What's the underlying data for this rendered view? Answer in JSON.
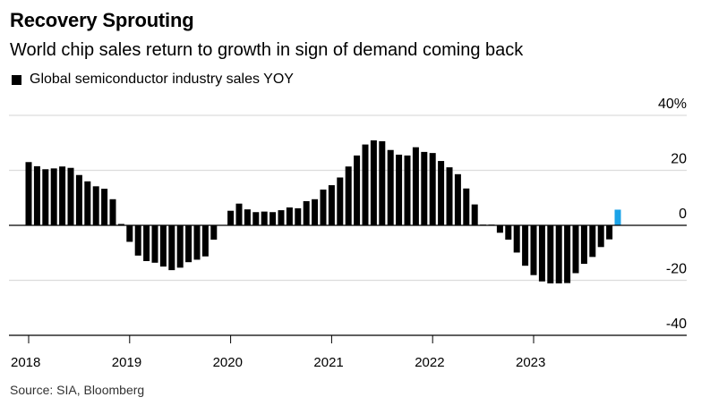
{
  "chart_data": {
    "type": "bar",
    "title": "Recovery Sprouting",
    "subtitle": "World chip sales return to growth in sign of demand coming back",
    "legend": [
      {
        "name": "Global semiconductor industry sales YOY",
        "color": "#000000"
      }
    ],
    "legend_placement": "top-left",
    "source": "Source: SIA, Bloomberg",
    "xlabel": "",
    "ylabel": "",
    "ylim": [
      -40,
      40
    ],
    "yticks": [
      {
        "value": 40,
        "label": "40%"
      },
      {
        "value": 20,
        "label": "20"
      },
      {
        "value": 0,
        "label": "0"
      },
      {
        "value": -20,
        "label": "-20"
      },
      {
        "value": -40,
        "label": "-40"
      }
    ],
    "xticks": [
      {
        "index": 0,
        "label": "2018"
      },
      {
        "index": 12,
        "label": "2019"
      },
      {
        "index": 24,
        "label": "2020"
      },
      {
        "index": 36,
        "label": "2021"
      },
      {
        "index": 48,
        "label": "2022"
      },
      {
        "index": 60,
        "label": "2023"
      }
    ],
    "x_start": "2018-01",
    "frequency": "monthly",
    "total_slots": 76,
    "grid": true,
    "bar_color": "#000000",
    "highlight_color": "#1ba3e8",
    "highlight_index": 70,
    "values": [
      23.0,
      21.5,
      20.4,
      20.7,
      21.4,
      20.9,
      18.3,
      16.0,
      14.2,
      13.3,
      9.5,
      0.5,
      -6.0,
      -11.0,
      -13.0,
      -13.6,
      -15.0,
      -16.3,
      -15.4,
      -13.4,
      -12.5,
      -11.3,
      -5.2,
      0.1,
      5.3,
      7.9,
      5.8,
      4.8,
      5.0,
      4.8,
      5.5,
      6.5,
      6.2,
      8.8,
      9.5,
      13.0,
      14.6,
      17.4,
      21.4,
      25.4,
      29.4,
      30.9,
      30.6,
      27.4,
      25.7,
      25.4,
      28.4,
      26.7,
      26.3,
      23.4,
      21.1,
      18.6,
      13.4,
      7.6,
      0.0,
      0.0,
      -2.7,
      -5.2,
      -9.9,
      -14.7,
      -18.1,
      -20.4,
      -21.1,
      -21.1,
      -21.0,
      -17.4,
      -14.0,
      -11.5,
      -7.9,
      -5.1,
      5.7
    ]
  }
}
